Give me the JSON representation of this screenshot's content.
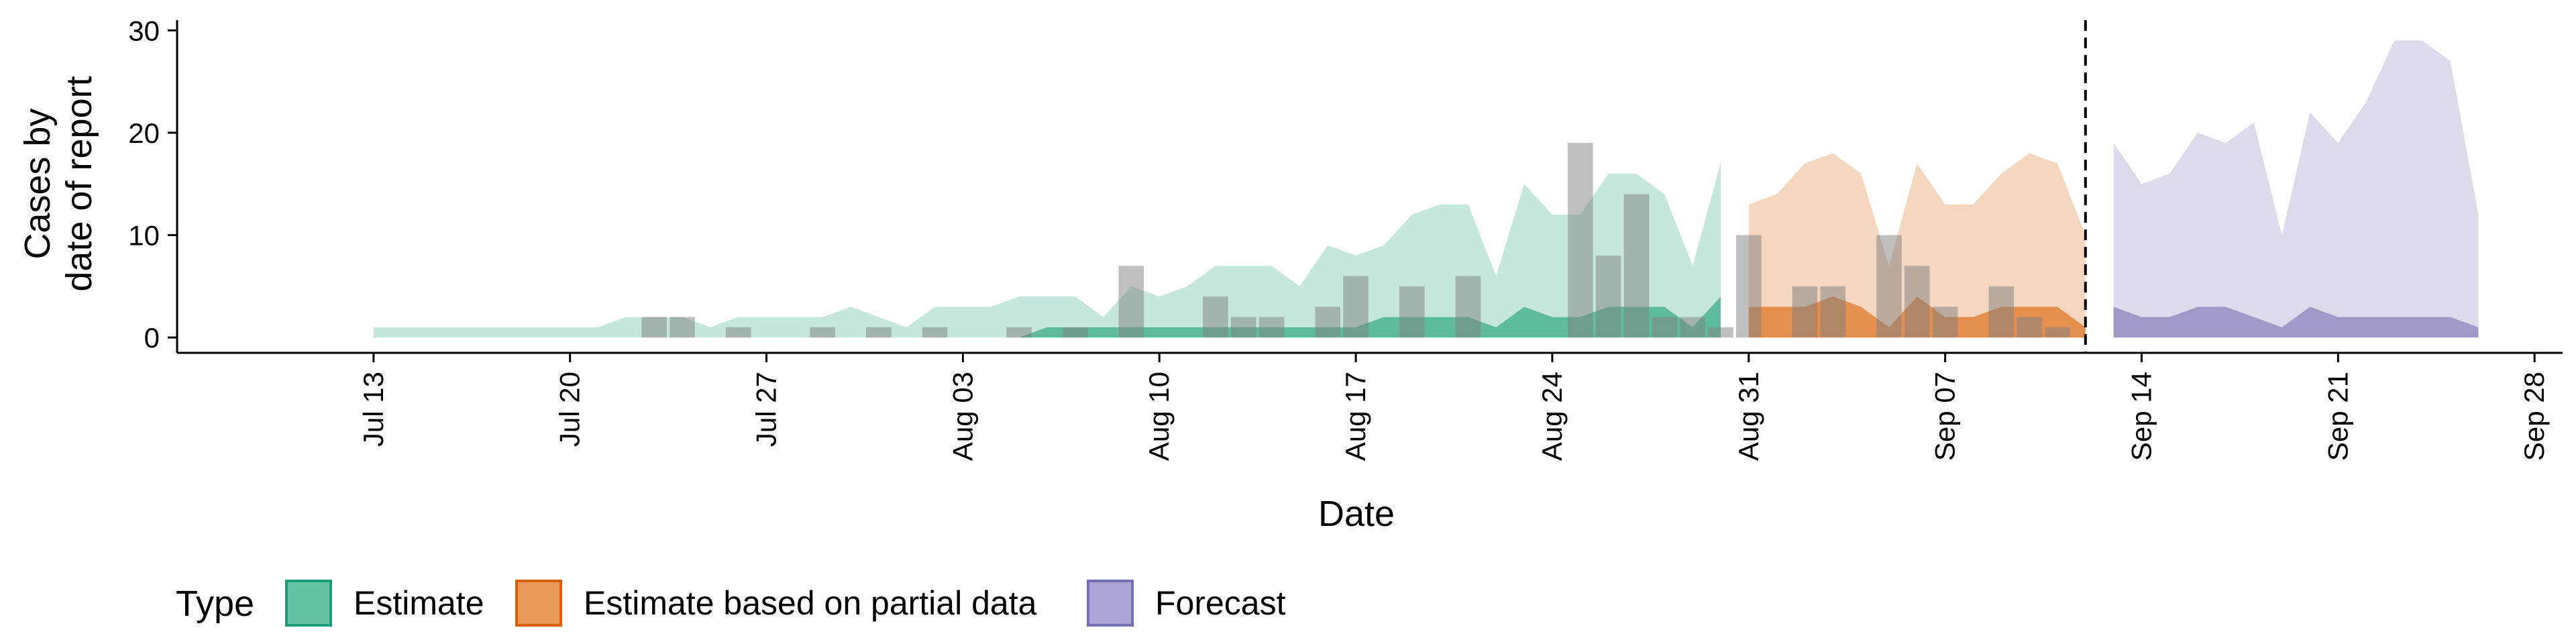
{
  "chart_data": {
    "type": "area",
    "xlabel": "Date",
    "ylabel": [
      "Cases by",
      "date of report"
    ],
    "ylim": [
      -1.5,
      31
    ],
    "yticks": [
      0,
      10,
      20,
      30
    ],
    "xlim": [
      "2020-07-06",
      "2020-09-29"
    ],
    "xticks": [
      {
        "date": "2020-07-13",
        "label": "Jul 13"
      },
      {
        "date": "2020-07-20",
        "label": "Jul 20"
      },
      {
        "date": "2020-07-27",
        "label": "Jul 27"
      },
      {
        "date": "2020-08-03",
        "label": "Aug 03"
      },
      {
        "date": "2020-08-10",
        "label": "Aug 10"
      },
      {
        "date": "2020-08-17",
        "label": "Aug 17"
      },
      {
        "date": "2020-08-24",
        "label": "Aug 24"
      },
      {
        "date": "2020-08-31",
        "label": "Aug 31"
      },
      {
        "date": "2020-09-07",
        "label": "Sep 07"
      },
      {
        "date": "2020-09-14",
        "label": "Sep 14"
      },
      {
        "date": "2020-09-21",
        "label": "Sep 21"
      },
      {
        "date": "2020-09-28",
        "label": "Sep 28"
      }
    ],
    "forecast_date": "2020-09-12",
    "grid": false,
    "legend": {
      "title": "Type",
      "position": "bottom",
      "items": [
        {
          "label": "Estimate",
          "fill": "#66c2a5",
          "stroke": "#1b9e77"
        },
        {
          "label": "Estimate based on partial data",
          "fill": "#e99959",
          "stroke": "#d95f02"
        },
        {
          "label": "Forecast",
          "fill": "#aaa5d4",
          "stroke": "#7570b3"
        }
      ]
    },
    "series": [
      {
        "name": "Estimate",
        "color": "#1b9e77",
        "start": "2020-07-13",
        "outer_upper": [
          1,
          1,
          1,
          1,
          1,
          1,
          1,
          1,
          1,
          2,
          2,
          2,
          1,
          2,
          2,
          2,
          2,
          3,
          2,
          1,
          3,
          3,
          3,
          4,
          4,
          4,
          2,
          5,
          4,
          5,
          7,
          7,
          7,
          5,
          9,
          8,
          9,
          12,
          13,
          13,
          6,
          15,
          12,
          12,
          16,
          16,
          14,
          7,
          17
        ],
        "outer_lower": [
          0,
          0,
          0,
          0,
          0,
          0,
          0,
          0,
          0,
          0,
          0,
          0,
          0,
          0,
          0,
          0,
          0,
          0,
          0,
          0,
          0,
          0,
          0,
          0,
          0,
          0,
          0,
          0,
          0,
          0,
          0,
          0,
          0,
          0,
          0,
          0,
          0,
          0,
          0,
          0,
          0,
          0,
          0,
          0,
          0,
          0,
          0,
          0,
          0
        ],
        "inner_upper": [
          0,
          0,
          0,
          0,
          0,
          0,
          0,
          0,
          0,
          0,
          0,
          0,
          0,
          0,
          0,
          0,
          0,
          0,
          0,
          0,
          0,
          0,
          0,
          0,
          1,
          1,
          1,
          1,
          1,
          1,
          1,
          1,
          1,
          1,
          1,
          1,
          2,
          2,
          2,
          2,
          1,
          3,
          2,
          2,
          3,
          3,
          3,
          1,
          4
        ],
        "inner_lower": [
          0,
          0,
          0,
          0,
          0,
          0,
          0,
          0,
          0,
          0,
          0,
          0,
          0,
          0,
          0,
          0,
          0,
          0,
          0,
          0,
          0,
          0,
          0,
          0,
          0,
          0,
          0,
          0,
          0,
          0,
          0,
          0,
          0,
          0,
          0,
          0,
          0,
          0,
          0,
          0,
          0,
          0,
          0,
          0,
          0,
          0,
          0,
          0,
          0
        ]
      },
      {
        "name": "Estimate based on partial data",
        "color": "#d95f02",
        "start": "2020-08-31",
        "outer_upper": [
          13,
          14,
          17,
          18,
          16,
          7,
          17,
          13,
          13,
          16,
          18,
          17,
          10
        ],
        "outer_lower": [
          0,
          0,
          0,
          0,
          0,
          0,
          0,
          0,
          0,
          0,
          0,
          0,
          0
        ],
        "inner_upper": [
          3,
          3,
          3,
          4,
          3,
          1,
          4,
          2,
          2,
          3,
          3,
          3,
          1
        ],
        "inner_lower": [
          0,
          0,
          0,
          0,
          0,
          0,
          0,
          0,
          0,
          0,
          0,
          0,
          0
        ]
      },
      {
        "name": "Forecast",
        "color": "#7570b3",
        "start": "2020-09-13",
        "outer_upper": [
          19,
          15,
          16,
          20,
          19,
          21,
          10,
          22,
          19,
          23,
          29,
          29,
          27,
          12
        ],
        "outer_lower": [
          0,
          0,
          0,
          0,
          0,
          0,
          0,
          0,
          0,
          0,
          0,
          0,
          0,
          0
        ],
        "inner_upper": [
          3,
          2,
          2,
          3,
          3,
          2,
          1,
          3,
          2,
          2,
          2,
          2,
          2,
          1
        ],
        "inner_lower": [
          0,
          0,
          0,
          0,
          0,
          0,
          0,
          0,
          0,
          0,
          0,
          0,
          0,
          0
        ]
      }
    ],
    "reported_cases": [
      {
        "date": "2020-07-23",
        "value": 2
      },
      {
        "date": "2020-07-24",
        "value": 2
      },
      {
        "date": "2020-07-26",
        "value": 1
      },
      {
        "date": "2020-07-29",
        "value": 1
      },
      {
        "date": "2020-07-31",
        "value": 1
      },
      {
        "date": "2020-08-02",
        "value": 1
      },
      {
        "date": "2020-08-05",
        "value": 1
      },
      {
        "date": "2020-08-07",
        "value": 1
      },
      {
        "date": "2020-08-09",
        "value": 7
      },
      {
        "date": "2020-08-12",
        "value": 4
      },
      {
        "date": "2020-08-13",
        "value": 2
      },
      {
        "date": "2020-08-14",
        "value": 2
      },
      {
        "date": "2020-08-16",
        "value": 3
      },
      {
        "date": "2020-08-17",
        "value": 6
      },
      {
        "date": "2020-08-19",
        "value": 5
      },
      {
        "date": "2020-08-21",
        "value": 6
      },
      {
        "date": "2020-08-25",
        "value": 19
      },
      {
        "date": "2020-08-26",
        "value": 8
      },
      {
        "date": "2020-08-27",
        "value": 14
      },
      {
        "date": "2020-08-28",
        "value": 2
      },
      {
        "date": "2020-08-29",
        "value": 2
      },
      {
        "date": "2020-08-30",
        "value": 1
      },
      {
        "date": "2020-08-31",
        "value": 10
      },
      {
        "date": "2020-09-02",
        "value": 5
      },
      {
        "date": "2020-09-03",
        "value": 5
      },
      {
        "date": "2020-09-05",
        "value": 10
      },
      {
        "date": "2020-09-06",
        "value": 7
      },
      {
        "date": "2020-09-07",
        "value": 3
      },
      {
        "date": "2020-09-09",
        "value": 5
      },
      {
        "date": "2020-09-10",
        "value": 2
      },
      {
        "date": "2020-09-11",
        "value": 1
      }
    ]
  }
}
